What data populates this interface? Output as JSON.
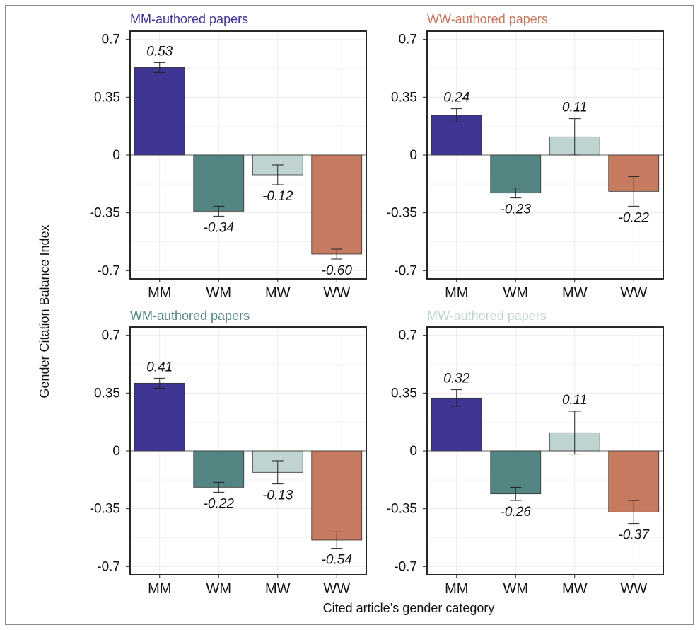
{
  "colors": {
    "MM": "#3f3593",
    "WM": "#538682",
    "MW": "#bfd3d1",
    "WW": "#c67b61"
  },
  "axis": {
    "ylabel": "Gender Citation Balance Index",
    "xlabel": "Cited article’s gender category"
  },
  "chart_data": [
    {
      "type": "bar",
      "title": "MM-authored papers",
      "title_color": "#3f3593",
      "categories": [
        "MM",
        "WM",
        "MW",
        "WW"
      ],
      "values": [
        0.53,
        -0.34,
        -0.12,
        -0.6
      ],
      "labels": [
        "0.53",
        "-0.34",
        "-0.12",
        "-0.60"
      ],
      "err": [
        0.03,
        0.03,
        0.06,
        0.03
      ],
      "ylim": [
        -0.75,
        0.75
      ],
      "yticks": [
        0.7,
        0.35,
        0,
        -0.35,
        -0.7
      ],
      "ytick_labels": [
        "0.7",
        "0.35",
        "0",
        "-0.35",
        "-0.7"
      ],
      "grid": true
    },
    {
      "type": "bar",
      "title": "WW-authored papers",
      "title_color": "#c67b61",
      "categories": [
        "MM",
        "WM",
        "MW",
        "WW"
      ],
      "values": [
        0.24,
        -0.23,
        0.11,
        -0.22
      ],
      "labels": [
        "0.24",
        "-0.23",
        "0.11",
        "-0.22"
      ],
      "err": [
        0.04,
        0.03,
        0.11,
        0.09
      ],
      "ylim": [
        -0.75,
        0.75
      ],
      "yticks": [
        0.7,
        0.35,
        0,
        -0.35,
        -0.7
      ],
      "ytick_labels": [
        "0.7",
        "0.35",
        "0",
        "-0.35",
        "-0.7"
      ],
      "grid": true
    },
    {
      "type": "bar",
      "title": "WM-authored papers",
      "title_color": "#538682",
      "categories": [
        "MM",
        "WM",
        "MW",
        "WW"
      ],
      "values": [
        0.41,
        -0.22,
        -0.13,
        -0.54
      ],
      "labels": [
        "0.41",
        "-0.22",
        "-0.13",
        "-0.54"
      ],
      "err": [
        0.03,
        0.03,
        0.07,
        0.05
      ],
      "ylim": [
        -0.75,
        0.75
      ],
      "yticks": [
        0.7,
        0.35,
        0,
        -0.35,
        -0.7
      ],
      "ytick_labels": [
        "0.7",
        "0.35",
        "0",
        "-0.35",
        "-0.7"
      ],
      "grid": true
    },
    {
      "type": "bar",
      "title": "MW-authored papers",
      "title_color": "#bfd3d1",
      "categories": [
        "MM",
        "WM",
        "MW",
        "WW"
      ],
      "values": [
        0.32,
        -0.26,
        0.11,
        -0.37
      ],
      "labels": [
        "0.32",
        "-0.26",
        "0.11",
        "-0.37"
      ],
      "err": [
        0.05,
        0.04,
        0.13,
        0.07
      ],
      "ylim": [
        -0.75,
        0.75
      ],
      "yticks": [
        0.7,
        0.35,
        0,
        -0.35,
        -0.7
      ],
      "ytick_labels": [
        "0.7",
        "0.35",
        "0",
        "-0.35",
        "-0.7"
      ],
      "grid": true
    }
  ]
}
